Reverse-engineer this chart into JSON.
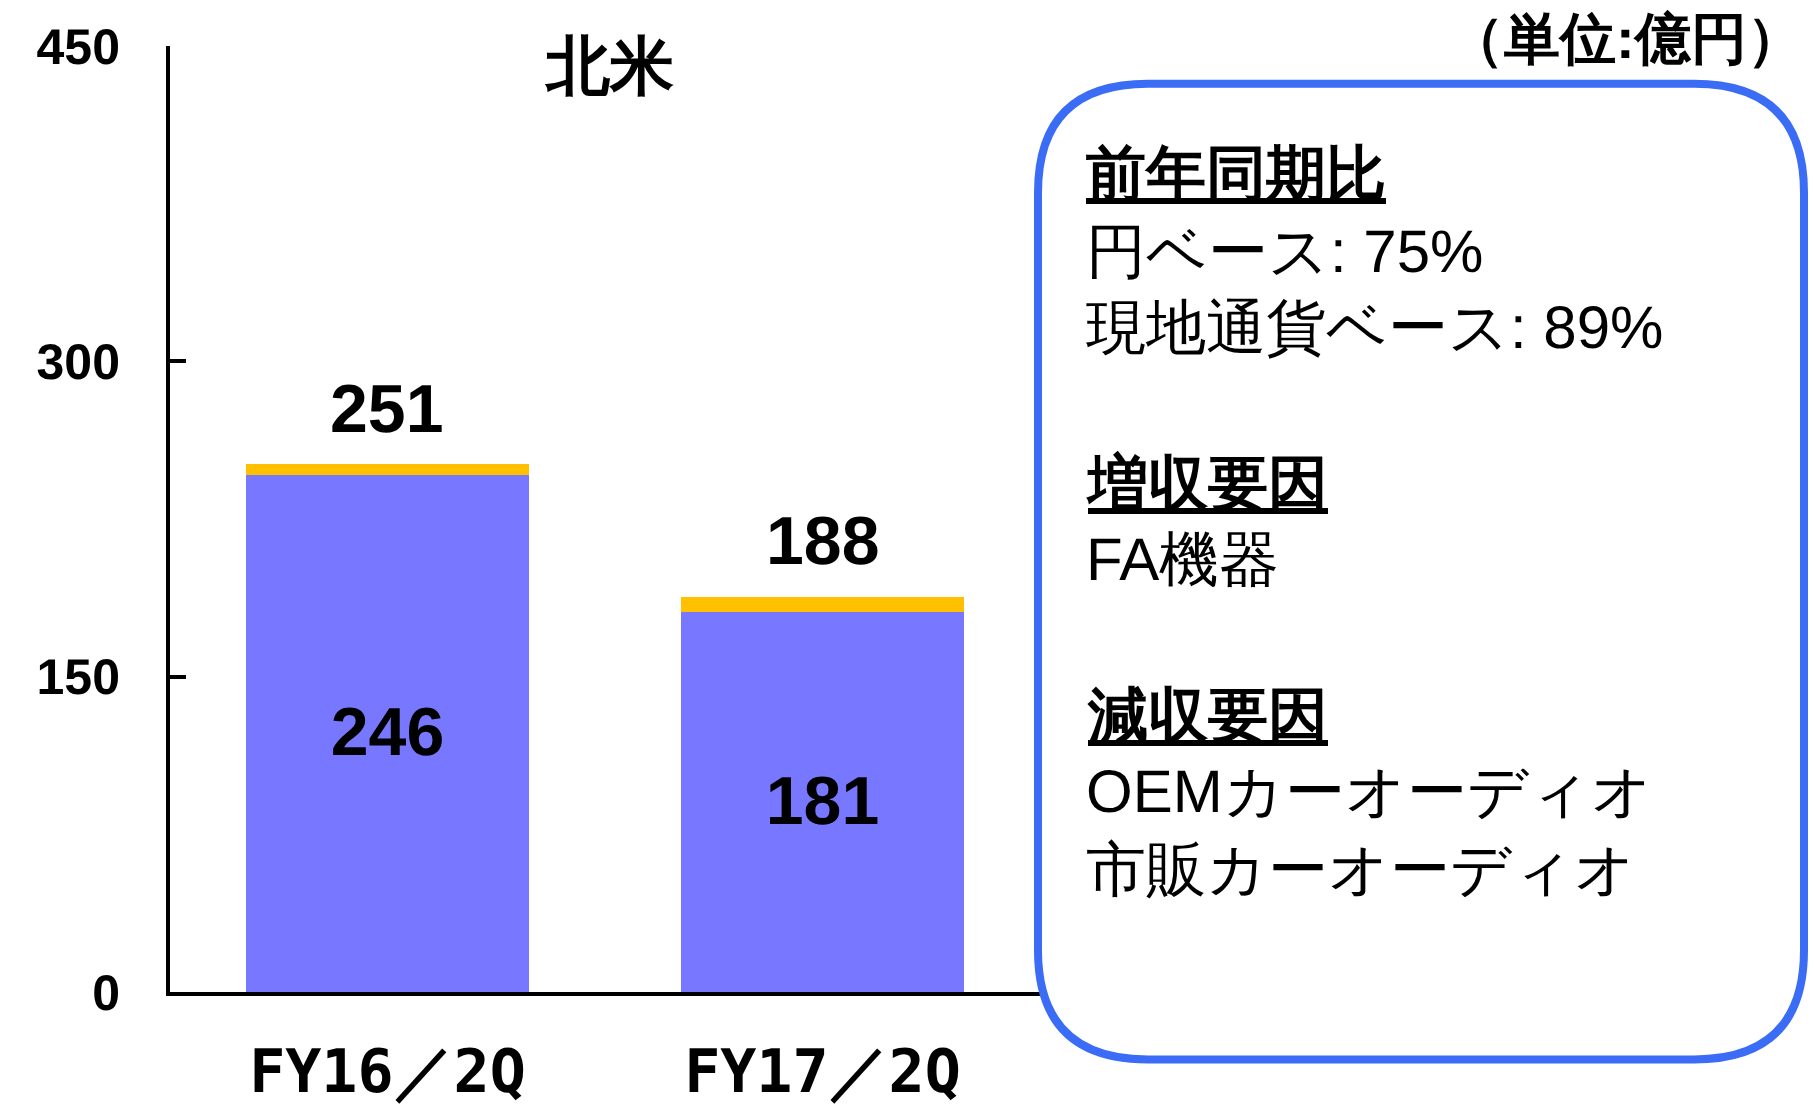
{
  "chart_data": [
    {
      "type": "bar",
      "title": "北米",
      "categories": [
        "FY16／2Q",
        "FY17／2Q"
      ],
      "stacked": true,
      "series": [
        {
          "color": "#7777ff",
          "values": [
            246,
            181
          ],
          "value_labels": [
            "246",
            "181"
          ]
        },
        {
          "color": "#ffc000",
          "values": [
            5,
            7
          ]
        }
      ],
      "totals": [
        "251",
        "188"
      ],
      "ylim": [
        0,
        450
      ],
      "yticks": [
        0,
        150,
        300,
        450
      ],
      "annotations": [
        "（単位:億円）"
      ]
    },
    {
      "type": "other",
      "title": "前年同期比",
      "annotations": [
        "円ベース: 75%",
        "現地通貨ベース: 89%"
      ]
    },
    {
      "type": "other",
      "title": "増収要因",
      "annotations": [
        "FA機器"
      ]
    },
    {
      "type": "other",
      "title": "減収要因",
      "annotations": [
        "OEMカーオーディオ",
        "市販カーオーディオ"
      ]
    }
  ]
}
